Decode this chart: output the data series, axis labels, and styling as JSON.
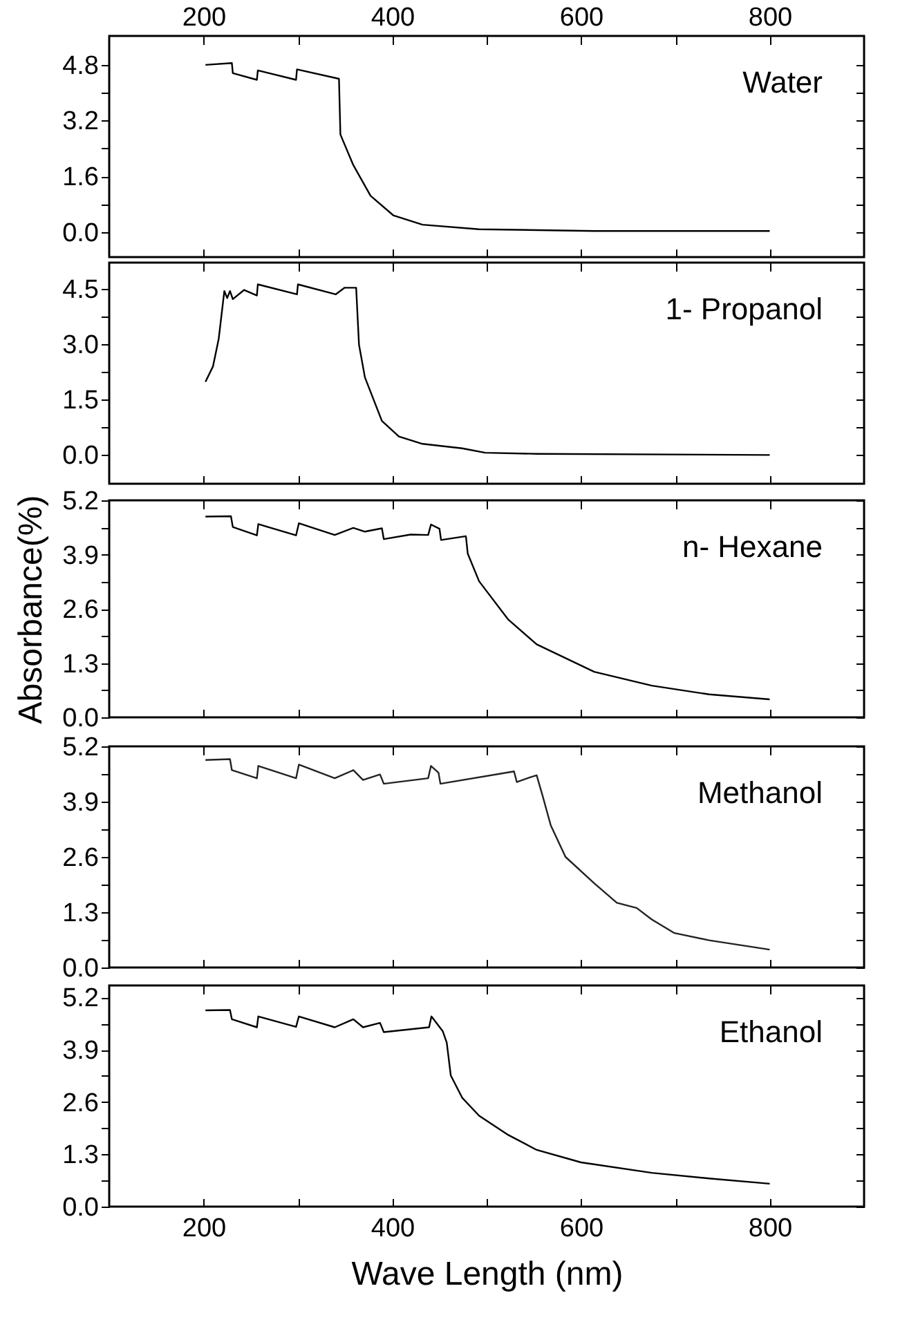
{
  "chart_data": [
    {
      "type": "line",
      "x": [
        202,
        230,
        231,
        256.5,
        257.5,
        298,
        299,
        343.5,
        345,
        358.7,
        377,
        401,
        432,
        492,
        614,
        800
      ],
      "series": [
        {
          "color": "#000000",
          "values": [
            4.8,
            4.85,
            4.56,
            4.37,
            4.64,
            4.37,
            4.67,
            4.4,
            2.8,
            1.92,
            1.04,
            0.48,
            0.21,
            0.08,
            0.03,
            0.03
          ]
        }
      ],
      "annotations": [
        "Water"
      ],
      "xlim": [
        100,
        900
      ],
      "xticks": [
        200,
        {
          "value": 300,
          "label": null
        },
        400,
        {
          "value": 500,
          "label": null
        },
        600,
        {
          "value": 700,
          "label": null
        },
        800
      ],
      "x2lim": [
        100,
        900
      ],
      "x2ticks": [
        200,
        {
          "value": 300,
          "label": null
        },
        400,
        {
          "value": 500,
          "label": null
        },
        600,
        {
          "value": 700,
          "label": null
        },
        800
      ],
      "ylim": [
        -0.72,
        5.63
      ],
      "yticks": [
        {
          "value": 0,
          "label": "0.0"
        },
        {
          "value": 0.8,
          "label": null
        },
        1.6,
        {
          "value": 2.4,
          "label": null
        },
        3.2,
        {
          "value": 4,
          "label": null
        },
        4.8
      ],
      "tick_labels": "y"
    },
    {
      "type": "line",
      "x": [
        202,
        210,
        216,
        222,
        225,
        228,
        231,
        243,
        256.5,
        257.5,
        299,
        300,
        340,
        349.5,
        361.7,
        364.7,
        371,
        389,
        407,
        432,
        474,
        498.5,
        553,
        800
      ],
      "series": [
        {
          "color": "#000000",
          "values": [
            1.98,
            2.4,
            3.14,
            4.44,
            4.25,
            4.44,
            4.22,
            4.47,
            4.32,
            4.62,
            4.35,
            4.62,
            4.35,
            4.53,
            4.53,
            2.99,
            2.1,
            0.92,
            0.5,
            0.3,
            0.18,
            0.06,
            0.03,
            0
          ]
        }
      ],
      "annotations": [
        "1- Propanol"
      ],
      "xlim": [
        100,
        900
      ],
      "xticks": [
        200,
        {
          "value": 300,
          "label": null
        },
        400,
        {
          "value": 500,
          "label": null
        },
        600,
        {
          "value": 700,
          "label": null
        },
        800
      ],
      "ylim": [
        -0.78,
        5.21
      ],
      "yticks": [
        {
          "value": 0,
          "label": "0.0"
        },
        {
          "value": 0.75,
          "label": null
        },
        1.5,
        {
          "value": 2.25,
          "label": null
        },
        {
          "value": 3,
          "label": "3.0"
        },
        {
          "value": 3.75,
          "label": null
        },
        4.5
      ],
      "tick_labels": "y"
    },
    {
      "type": "line",
      "x": [
        202,
        229,
        231,
        256.5,
        258,
        298,
        301,
        339,
        358.7,
        371,
        389,
        391,
        419.5,
        438,
        441,
        450,
        451.7,
        478,
        480,
        492,
        523,
        553,
        614,
        675,
        735.7,
        800
      ],
      "series": [
        {
          "color": "#000000",
          "values": [
            4.81,
            4.82,
            4.56,
            4.36,
            4.63,
            4.36,
            4.65,
            4.37,
            4.54,
            4.45,
            4.53,
            4.27,
            4.38,
            4.37,
            4.62,
            4.52,
            4.25,
            4.34,
            3.92,
            3.26,
            2.34,
            1.75,
            1.09,
            0.76,
            0.55,
            0.43
          ]
        }
      ],
      "annotations": [
        "n- Hexane"
      ],
      "ylabel": "Absorbance(%)",
      "xlim": [
        100,
        900
      ],
      "xticks": [
        200,
        {
          "value": 300,
          "label": null
        },
        400,
        {
          "value": 500,
          "label": null
        },
        600,
        {
          "value": 700,
          "label": null
        },
        800
      ],
      "ylim": [
        0,
        5.2
      ],
      "yticks": [
        {
          "value": 0,
          "label": "0.0"
        },
        {
          "value": 0.65,
          "label": null
        },
        1.3,
        {
          "value": 1.95,
          "label": null
        },
        2.6,
        {
          "value": 3.25,
          "label": null
        },
        3.9,
        {
          "value": 4.55,
          "label": null
        },
        5.2
      ],
      "tick_labels": "y"
    },
    {
      "type": "line",
      "x": [
        202,
        228,
        230,
        256.5,
        258,
        298,
        301,
        339,
        358.7,
        369,
        387,
        391,
        438,
        441,
        449,
        451,
        529,
        532,
        547,
        553,
        559,
        568,
        583.6,
        614,
        638,
        659,
        675,
        699,
        735.7,
        800
      ],
      "series": [
        {
          "color": "#222222",
          "values": [
            4.88,
            4.9,
            4.64,
            4.45,
            4.74,
            4.45,
            4.77,
            4.45,
            4.64,
            4.41,
            4.54,
            4.32,
            4.45,
            4.74,
            4.58,
            4.32,
            4.61,
            4.36,
            4.48,
            4.52,
            4.06,
            3.34,
            2.6,
            1.98,
            1.52,
            1.4,
            1.13,
            0.81,
            0.64,
            0.42
          ]
        }
      ],
      "annotations": [
        "Methanol"
      ],
      "xlim": [
        100,
        900
      ],
      "xticks": [
        200,
        {
          "value": 300,
          "label": null
        },
        400,
        {
          "value": 500,
          "label": null
        },
        600,
        {
          "value": 700,
          "label": null
        },
        800
      ],
      "ylim": [
        0,
        5.2
      ],
      "yticks": [
        {
          "value": 0,
          "label": "0.0"
        },
        {
          "value": 0.65,
          "label": null
        },
        1.3,
        {
          "value": 1.95,
          "label": null
        },
        2.6,
        {
          "value": 3.25,
          "label": null
        },
        3.9,
        {
          "value": 4.55,
          "label": null
        },
        5.2
      ],
      "tick_labels": "y"
    },
    {
      "type": "line",
      "x": [
        202,
        228,
        230,
        256.5,
        258,
        298,
        301,
        339,
        358.7,
        369,
        387,
        391,
        439,
        441.5,
        453.5,
        457.7,
        462,
        474,
        492,
        523,
        553,
        600,
        675,
        735.7,
        800
      ],
      "series": [
        {
          "color": "#000000",
          "values": [
            4.88,
            4.89,
            4.66,
            4.46,
            4.73,
            4.47,
            4.73,
            4.46,
            4.66,
            4.46,
            4.57,
            4.34,
            4.46,
            4.73,
            4.36,
            4.08,
            3.26,
            2.71,
            2.26,
            1.78,
            1.41,
            1.1,
            0.84,
            0.7,
            0.57
          ]
        }
      ],
      "annotations": [
        "Ethanol"
      ],
      "xlabel": "Wave Length (nm)",
      "xlim": [
        100,
        900
      ],
      "xticks": [
        200,
        {
          "value": 300,
          "label": null
        },
        400,
        {
          "value": 500,
          "label": null
        },
        600,
        {
          "value": 700,
          "label": null
        },
        800
      ],
      "ylim": [
        0,
        5.5
      ],
      "yticks": [
        {
          "value": 0,
          "label": "0.0"
        },
        {
          "value": 0.65,
          "label": null
        },
        1.3,
        {
          "value": 1.95,
          "label": null
        },
        2.6,
        {
          "value": 3.25,
          "label": null
        },
        3.9,
        {
          "value": 4.55,
          "label": null
        },
        5.2
      ]
    }
  ]
}
